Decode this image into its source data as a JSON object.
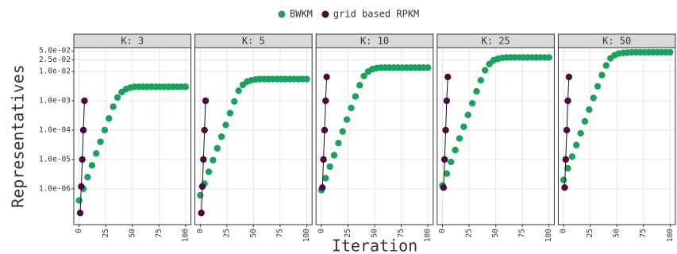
{
  "chart_data": {
    "type": "scatter",
    "x_label": "Iteration",
    "y_label": "Representatives",
    "log_y": true,
    "grid": true,
    "legend": "top",
    "xlim": [
      -5,
      105
    ],
    "xticks": [
      0,
      25,
      50,
      75,
      100
    ],
    "ylim": [
      6e-08,
      0.065
    ],
    "yticks": [
      {
        "value": 1e-06,
        "label": "1.0e-06"
      },
      {
        "value": 1e-05,
        "label": "1.0e-05"
      },
      {
        "value": 0.0001,
        "label": "1.0e-04"
      },
      {
        "value": 0.001,
        "label": "1.0e-03"
      },
      {
        "value": 0.01,
        "label": "1.0e-02"
      },
      {
        "value": 0.025,
        "label": "2.5e-02"
      },
      {
        "value": 0.05,
        "label": "5.0e-02"
      }
    ],
    "panels": [
      {
        "title": "K: 3",
        "series": [
          {
            "name": "BWKM",
            "color": "#17a35c",
            "x": [
              0,
              4,
              8,
              12,
              16,
              20,
              24,
              28,
              32,
              36,
              40,
              44,
              48,
              52,
              56,
              60,
              64,
              68,
              72,
              76,
              80,
              84,
              88,
              92,
              96,
              100
            ],
            "values": [
              4e-07,
              1e-06,
              2.5e-06,
              6.3e-06,
              1.6e-05,
              4e-05,
              0.0001,
              0.00025,
              0.00063,
              0.0013,
              0.002,
              0.0025,
              0.0028,
              0.003,
              0.003,
              0.003,
              0.003,
              0.003,
              0.003,
              0.003,
              0.003,
              0.003,
              0.003,
              0.003,
              0.003,
              0.003
            ]
          },
          {
            "name": "grid based RPKM",
            "color": "#4a0a40",
            "x": [
              1,
              2,
              3,
              4,
              5
            ],
            "values": [
              1.5e-07,
              1.2e-06,
              1e-05,
              0.0001,
              0.001
            ]
          }
        ]
      },
      {
        "title": "K: 5",
        "series": [
          {
            "name": "BWKM",
            "color": "#17a35c",
            "x": [
              0,
              4,
              8,
              12,
              16,
              20,
              24,
              28,
              32,
              36,
              40,
              44,
              48,
              52,
              56,
              60,
              64,
              68,
              72,
              76,
              80,
              84,
              88,
              92,
              96,
              100
            ],
            "values": [
              6e-07,
              1.5e-06,
              3.8e-06,
              9.5e-06,
              2.4e-05,
              6e-05,
              0.00015,
              0.00038,
              0.00095,
              0.0022,
              0.0035,
              0.0045,
              0.005,
              0.0053,
              0.0055,
              0.0055,
              0.0055,
              0.0055,
              0.0055,
              0.0055,
              0.0055,
              0.0055,
              0.0055,
              0.0055,
              0.0055,
              0.0055
            ]
          },
          {
            "name": "grid based RPKM",
            "color": "#4a0a40",
            "x": [
              1,
              2,
              3,
              4,
              5
            ],
            "values": [
              1.5e-07,
              1.2e-06,
              1e-05,
              0.0001,
              0.001
            ]
          }
        ]
      },
      {
        "title": "K: 10",
        "series": [
          {
            "name": "BWKM",
            "color": "#17a35c",
            "x": [
              0,
              4,
              8,
              12,
              16,
              20,
              24,
              28,
              32,
              36,
              40,
              44,
              48,
              52,
              56,
              60,
              64,
              68,
              72,
              76,
              80,
              84,
              88,
              92,
              96,
              100
            ],
            "values": [
              9e-07,
              2.3e-06,
              5.7e-06,
              1.4e-05,
              3.6e-05,
              9e-05,
              0.00023,
              0.00057,
              0.0014,
              0.0034,
              0.007,
              0.01,
              0.012,
              0.013,
              0.0135,
              0.0135,
              0.0135,
              0.0135,
              0.0135,
              0.0135,
              0.0135,
              0.0135,
              0.0135,
              0.0135,
              0.0135,
              0.0135
            ]
          },
          {
            "name": "grid based RPKM",
            "color": "#4a0a40",
            "x": [
              1,
              2,
              3,
              4,
              5
            ],
            "values": [
              1.1e-06,
              1e-05,
              0.0001,
              0.001,
              0.0065
            ]
          }
        ]
      },
      {
        "title": "K: 25",
        "series": [
          {
            "name": "BWKM",
            "color": "#17a35c",
            "x": [
              0,
              4,
              8,
              12,
              16,
              20,
              24,
              28,
              32,
              36,
              40,
              44,
              48,
              52,
              56,
              60,
              64,
              68,
              72,
              76,
              80,
              84,
              88,
              92,
              96,
              100
            ],
            "values": [
              1.3e-06,
              3.3e-06,
              8.2e-06,
              2.1e-05,
              5.2e-05,
              0.00013,
              0.00033,
              0.00082,
              0.0021,
              0.005,
              0.011,
              0.018,
              0.024,
              0.027,
              0.029,
              0.03,
              0.03,
              0.03,
              0.03,
              0.03,
              0.03,
              0.03,
              0.03,
              0.03,
              0.03,
              0.03
            ]
          },
          {
            "name": "grid based RPKM",
            "color": "#4a0a40",
            "x": [
              1,
              2,
              3,
              4,
              5
            ],
            "values": [
              1.1e-06,
              1e-05,
              0.0001,
              0.001,
              0.0065
            ]
          }
        ]
      },
      {
        "title": "K: 50",
        "series": [
          {
            "name": "BWKM",
            "color": "#17a35c",
            "x": [
              0,
              4,
              8,
              12,
              16,
              20,
              24,
              28,
              32,
              36,
              40,
              44,
              48,
              52,
              56,
              60,
              64,
              68,
              72,
              76,
              80,
              84,
              88,
              92,
              96,
              100
            ],
            "values": [
              2e-06,
              5e-06,
              1.25e-05,
              3.1e-05,
              7.8e-05,
              0.0002,
              0.0005,
              0.00125,
              0.0031,
              0.0075,
              0.016,
              0.028,
              0.036,
              0.041,
              0.043,
              0.044,
              0.045,
              0.045,
              0.045,
              0.045,
              0.045,
              0.045,
              0.045,
              0.045,
              0.045,
              0.045
            ]
          },
          {
            "name": "grid based RPKM",
            "color": "#4a0a40",
            "x": [
              1,
              2,
              3,
              4,
              5
            ],
            "values": [
              1.1e-06,
              1e-05,
              0.0001,
              0.001,
              0.0065
            ]
          }
        ]
      }
    ]
  }
}
